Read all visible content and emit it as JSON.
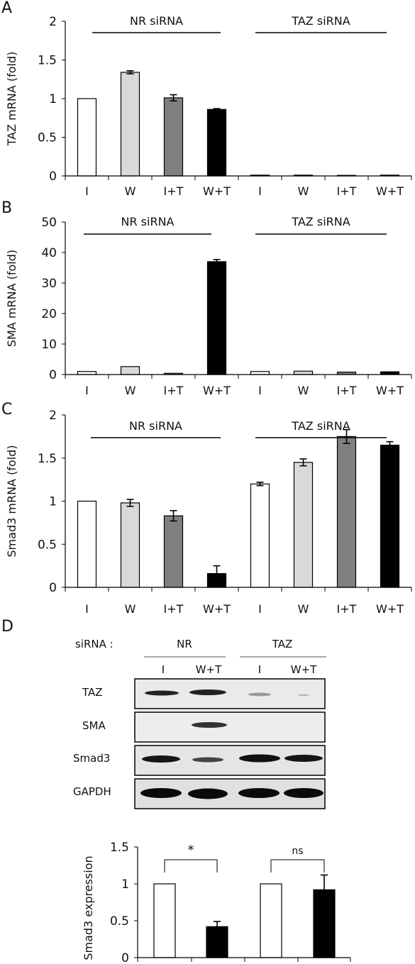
{
  "chart_data": [
    {
      "panel": "A",
      "type": "bar",
      "ylabel": "TAZ mRNA (fold)",
      "ylim": [
        0,
        2
      ],
      "yticks": [
        0,
        0.5,
        1,
        1.5,
        2
      ],
      "ytick_labels": [
        "0",
        "0.5",
        "1",
        "1.5",
        "2"
      ],
      "groups": [
        "NR siRNA",
        "TAZ siRNA"
      ],
      "categories": [
        "I",
        "W",
        "I+T",
        "W+T",
        "I",
        "W",
        "I+T",
        "W+T"
      ],
      "values": [
        1.0,
        1.34,
        1.01,
        0.86,
        0.01,
        0.01,
        0.005,
        0.01
      ],
      "errors": [
        0,
        0.02,
        0.04,
        0.01,
        0,
        0,
        0,
        0
      ],
      "colors": [
        "#ffffff",
        "#d9d9d9",
        "#808080",
        "#000000",
        "#ffffff",
        "#d9d9d9",
        "#808080",
        "#000000"
      ]
    },
    {
      "panel": "B",
      "type": "bar",
      "ylabel": "SMA mRNA (fold)",
      "ylim": [
        0,
        50
      ],
      "yticks": [
        0,
        10,
        20,
        30,
        40,
        50
      ],
      "ytick_labels": [
        "0",
        "10",
        "20",
        "30",
        "40",
        "50"
      ],
      "groups": [
        "NR siRNA",
        "TAZ siRNA"
      ],
      "categories": [
        "I",
        "W",
        "I+T",
        "W+T",
        "I",
        "W",
        "I+T",
        "W+T"
      ],
      "values": [
        1.0,
        2.6,
        0.4,
        37.0,
        1.0,
        1.1,
        0.8,
        0.9
      ],
      "errors": [
        0,
        0,
        0,
        0.7,
        0,
        0,
        0,
        0
      ],
      "colors": [
        "#ffffff",
        "#d9d9d9",
        "#808080",
        "#000000",
        "#ffffff",
        "#d9d9d9",
        "#808080",
        "#000000"
      ]
    },
    {
      "panel": "C",
      "type": "bar",
      "ylabel": "Smad3 mRNA (fold)",
      "ylim": [
        0,
        2
      ],
      "yticks": [
        0,
        0.5,
        1,
        1.5,
        2
      ],
      "ytick_labels": [
        "0",
        "0.5",
        "1",
        "1.5",
        "2"
      ],
      "groups": [
        "NR siRNA",
        "TAZ siRNA"
      ],
      "categories": [
        "I",
        "W",
        "I+T",
        "W+T",
        "I",
        "W",
        "I+T",
        "W+T"
      ],
      "values": [
        1.0,
        0.98,
        0.83,
        0.16,
        1.2,
        1.45,
        1.75,
        1.65
      ],
      "errors": [
        0,
        0.04,
        0.06,
        0.09,
        0.02,
        0.04,
        0.08,
        0.04
      ],
      "colors": [
        "#ffffff",
        "#d9d9d9",
        "#808080",
        "#000000",
        "#ffffff",
        "#d9d9d9",
        "#808080",
        "#000000"
      ]
    },
    {
      "panel": "D",
      "type": "bar",
      "ylabel": "Smad3 expression",
      "ylim": [
        0,
        1.5
      ],
      "yticks": [
        0,
        0.5,
        1,
        1.5
      ],
      "ytick_labels": [
        "0",
        "0.5",
        "1",
        "1.5"
      ],
      "values": [
        1.0,
        0.42,
        1.0,
        0.92
      ],
      "errors": [
        0,
        0.07,
        0,
        0.2
      ],
      "colors": [
        "#ffffff",
        "#000000",
        "#ffffff",
        "#000000"
      ],
      "significance": [
        "*",
        "ns"
      ]
    }
  ],
  "panels": {
    "a_letter": "A",
    "b_letter": "B",
    "c_letter": "C",
    "d_letter": "D"
  },
  "blot": {
    "sirna_label": "siRNA :",
    "group_labels": [
      "NR",
      "TAZ"
    ],
    "lane_labels": [
      "I",
      "W+T",
      "I",
      "W+T"
    ],
    "row_labels": [
      "TAZ",
      "SMA",
      "Smad3",
      "GAPDH"
    ]
  }
}
